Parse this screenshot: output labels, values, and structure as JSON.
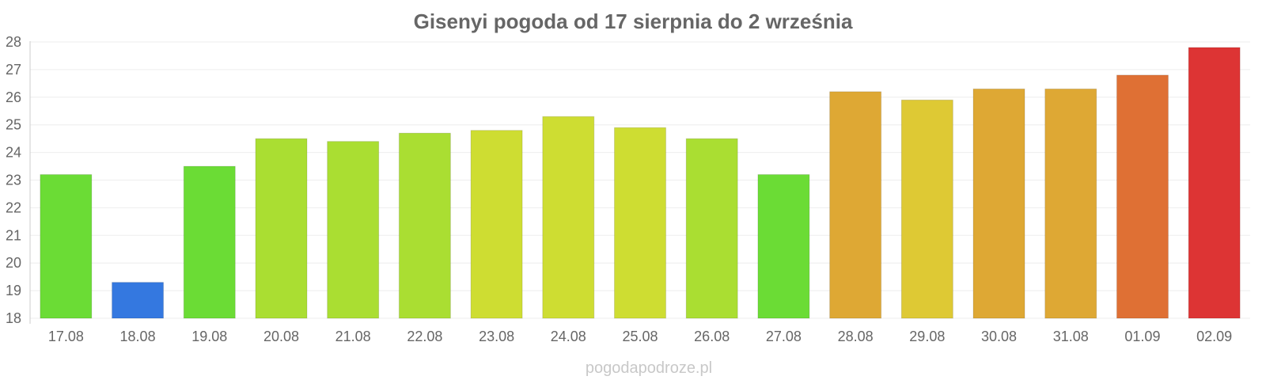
{
  "site": "pogodapodroze.pl",
  "chart_data": {
    "type": "bar",
    "title": "Gisenyi pogoda od 17 sierpnia do 2 września",
    "categories": [
      "17.08",
      "18.08",
      "19.08",
      "20.08",
      "21.08",
      "22.08",
      "23.08",
      "24.08",
      "25.08",
      "26.08",
      "27.08",
      "28.08",
      "29.08",
      "30.08",
      "31.08",
      "01.09",
      "02.09"
    ],
    "values": [
      23.2,
      19.3,
      23.5,
      24.5,
      24.4,
      24.7,
      24.8,
      25.3,
      24.9,
      24.5,
      23.2,
      26.2,
      25.9,
      26.3,
      26.3,
      26.8,
      27.8
    ],
    "colors": [
      "#6bdc35",
      "#3478e0",
      "#6bdc35",
      "#aade32",
      "#aade32",
      "#aade32",
      "#cedd32",
      "#cedd32",
      "#cedd32",
      "#aade32",
      "#6bdc35",
      "#dea834",
      "#dec934",
      "#dea834",
      "#dea834",
      "#df7034",
      "#dd3434"
    ],
    "ylim": [
      18,
      28
    ],
    "yticks": [
      18,
      19,
      20,
      21,
      22,
      23,
      24,
      25,
      26,
      27,
      28
    ],
    "grid": true,
    "legend": "none"
  }
}
